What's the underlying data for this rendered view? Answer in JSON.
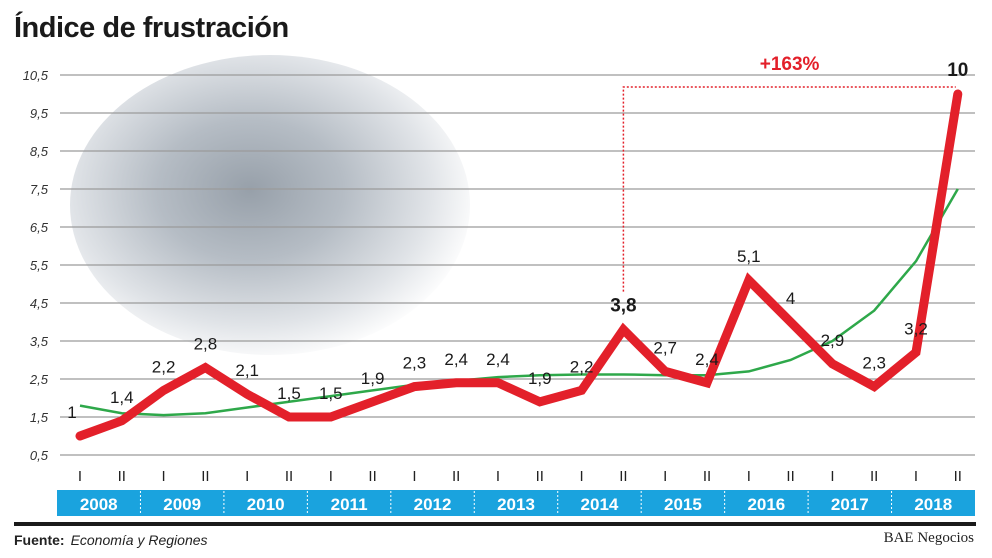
{
  "title": "Índice de frustración",
  "source_label": "Fuente:",
  "source_value": "Economía y Regiones",
  "credit": "BAE Negocios",
  "colors": {
    "main": "#e3202a",
    "trend": "#2ea84a",
    "year_bar": "#1aa3de",
    "grid": "#9a9a9a"
  },
  "chart_data": {
    "type": "line",
    "title": "Índice de frustración",
    "xlabel": "",
    "ylabel": "",
    "ylim": [
      0.5,
      10.5
    ],
    "yticks": [
      "0,5",
      "1,5",
      "2,5",
      "3,5",
      "4,5",
      "5,5",
      "6,5",
      "7,5",
      "8,5",
      "9,5",
      "10,5"
    ],
    "grid": true,
    "years": [
      "2008",
      "2009",
      "2010",
      "2011",
      "2012",
      "2013",
      "2014",
      "2015",
      "2016",
      "2017",
      "2018"
    ],
    "semesters": [
      "I",
      "II"
    ],
    "series": [
      {
        "values": [
          1,
          1.4,
          2.2,
          2.8,
          2.1,
          1.5,
          1.5,
          1.9,
          2.3,
          2.4,
          2.4,
          1.9,
          2.2,
          3.8,
          2.7,
          2.4,
          5.1,
          4,
          2.9,
          2.3,
          3.2,
          10
        ],
        "labels": [
          "1",
          "1,4",
          "2,2",
          "2,8",
          "2,1",
          "1,5",
          "1,5",
          "1,9",
          "2,3",
          "2,4",
          "2,4",
          "1,9",
          "2,2",
          "3,8",
          "2,7",
          "2,4",
          "5,1",
          "4",
          "2,9",
          "2,3",
          "3,2",
          "10"
        ]
      },
      {
        "type": "trend",
        "values": [
          1.8,
          1.6,
          1.55,
          1.6,
          1.75,
          1.9,
          2.05,
          2.2,
          2.35,
          2.45,
          2.55,
          2.6,
          2.62,
          2.62,
          2.6,
          2.6,
          2.7,
          3.0,
          3.5,
          4.3,
          5.6,
          7.5
        ]
      }
    ],
    "annotation": {
      "text": "+163%",
      "from_index": 13,
      "to_index": 21
    }
  }
}
